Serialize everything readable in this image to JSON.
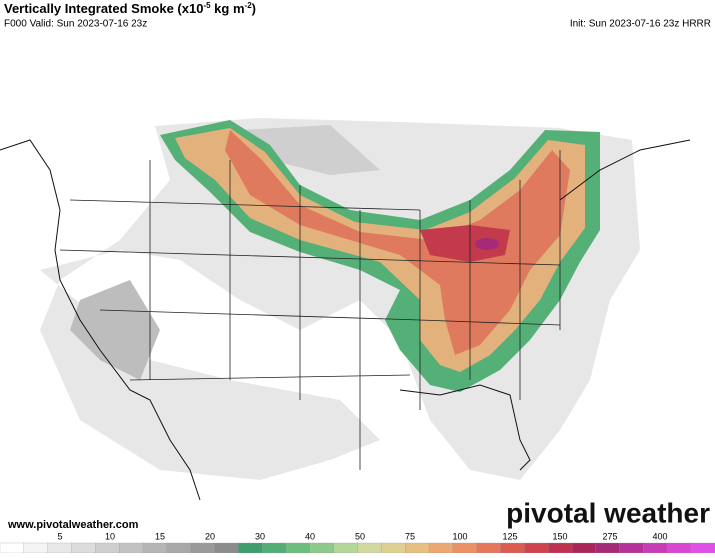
{
  "header": {
    "title": {
      "main": "Vertically Integrated Smoke (x10",
      "exp1": "-5",
      "mid": " kg m",
      "exp2": "-2",
      "end": ")"
    },
    "valid": "F000 Valid: Sun 2023-07-16 23z",
    "init": "Init: Sun 2023-07-16 23z HRRR"
  },
  "footer": {
    "url": "www.pivotalweather.com",
    "brand": "pivotal weather"
  },
  "colorbar": {
    "ticks": [
      5,
      10,
      15,
      20,
      30,
      40,
      50,
      75,
      100,
      125,
      150,
      275,
      400
    ],
    "colors": [
      "#ffffff",
      "#f4f4f4",
      "#e8e8e8",
      "#dcdcdc",
      "#cfcfcf",
      "#c2c2c2",
      "#b5b5b5",
      "#a8a8a8",
      "#9a9a9a",
      "#8c8c8c",
      "#3e9e6c",
      "#52ae74",
      "#6ebd7e",
      "#8cc98a",
      "#b3d69a",
      "#cfd9a0",
      "#e0cf94",
      "#e8bf82",
      "#eca874",
      "#ec9066",
      "#e6765c",
      "#dc5c52",
      "#cf444c",
      "#be3150",
      "#aa2658",
      "#a52a78",
      "#b63298",
      "#c93cb8",
      "#d846d2",
      "#e050e6"
    ]
  }
}
